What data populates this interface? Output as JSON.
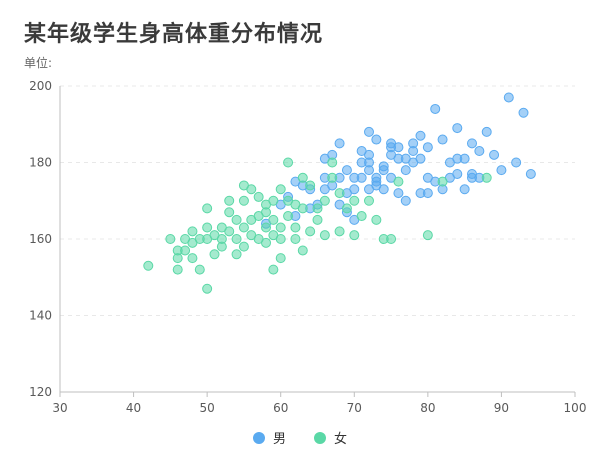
{
  "page": {
    "title": "某年级学生身高体重分布情况",
    "unit_label": "单位:"
  },
  "colors": {
    "male": "#5aaaf0",
    "female": "#5ad8a6",
    "axis": "#bfbfbf",
    "grid": "#e8e8e8",
    "tick_text": "#595959"
  },
  "legend": [
    {
      "name": "男",
      "color_key": "male"
    },
    {
      "name": "女",
      "color_key": "female"
    }
  ],
  "chart_data": {
    "type": "scatter",
    "title": "某年级学生身高体重分布情况",
    "xlabel": "",
    "ylabel": "单位:",
    "xlim": [
      30,
      100
    ],
    "ylim": [
      120,
      200
    ],
    "x_ticks": [
      30,
      40,
      50,
      60,
      70,
      80,
      90,
      100
    ],
    "y_ticks": [
      120,
      140,
      160,
      180,
      200
    ],
    "grid": "horizontal dashed",
    "legend_position": "bottom",
    "series": [
      {
        "name": "男",
        "color": "#5aaaf0",
        "points": [
          [
            58,
            164
          ],
          [
            61,
            171
          ],
          [
            62,
            175
          ],
          [
            63,
            174
          ],
          [
            64,
            173
          ],
          [
            65,
            169
          ],
          [
            66,
            181
          ],
          [
            67,
            174
          ],
          [
            68,
            176
          ],
          [
            68,
            169
          ],
          [
            69,
            167
          ],
          [
            69,
            172
          ],
          [
            70,
            173
          ],
          [
            70,
            176
          ],
          [
            71,
            176
          ],
          [
            71,
            180
          ],
          [
            72,
            182
          ],
          [
            72,
            178
          ],
          [
            72,
            188
          ],
          [
            73,
            186
          ],
          [
            73,
            176
          ],
          [
            73,
            174
          ],
          [
            74,
            173
          ],
          [
            74,
            179
          ],
          [
            75,
            182
          ],
          [
            75,
            184
          ],
          [
            75,
            176
          ],
          [
            76,
            172
          ],
          [
            76,
            181
          ],
          [
            76,
            184
          ],
          [
            77,
            178
          ],
          [
            77,
            181
          ],
          [
            78,
            180
          ],
          [
            78,
            185
          ],
          [
            79,
            181
          ],
          [
            79,
            187
          ],
          [
            80,
            184
          ],
          [
            80,
            172
          ],
          [
            81,
            194
          ],
          [
            81,
            175
          ],
          [
            82,
            186
          ],
          [
            82,
            173
          ],
          [
            83,
            180
          ],
          [
            83,
            176
          ],
          [
            84,
            189
          ],
          [
            84,
            177
          ],
          [
            85,
            181
          ],
          [
            85,
            173
          ],
          [
            86,
            176
          ],
          [
            86,
            185
          ],
          [
            87,
            183
          ],
          [
            87,
            176
          ],
          [
            88,
            188
          ],
          [
            89,
            182
          ],
          [
            90,
            178
          ],
          [
            91,
            197
          ],
          [
            92,
            180
          ],
          [
            93,
            193
          ],
          [
            94,
            177
          ],
          [
            71,
            183
          ],
          [
            67,
            182
          ],
          [
            72,
            173
          ],
          [
            70,
            165
          ],
          [
            68,
            185
          ],
          [
            66,
            173
          ],
          [
            73,
            175
          ],
          [
            74,
            178
          ],
          [
            77,
            170
          ],
          [
            79,
            172
          ],
          [
            80,
            176
          ],
          [
            84,
            181
          ],
          [
            86,
            177
          ],
          [
            72,
            180
          ],
          [
            75,
            185
          ],
          [
            78,
            183
          ],
          [
            60,
            169
          ],
          [
            62,
            166
          ],
          [
            64,
            168
          ],
          [
            66,
            176
          ],
          [
            69,
            178
          ]
        ]
      },
      {
        "name": "女",
        "color": "#5ad8a6",
        "points": [
          [
            42,
            153
          ],
          [
            45,
            160
          ],
          [
            46,
            152
          ],
          [
            46,
            155
          ],
          [
            47,
            160
          ],
          [
            47,
            157
          ],
          [
            48,
            159
          ],
          [
            48,
            162
          ],
          [
            49,
            152
          ],
          [
            49,
            160
          ],
          [
            50,
            147
          ],
          [
            50,
            160
          ],
          [
            50,
            168
          ],
          [
            51,
            156
          ],
          [
            51,
            161
          ],
          [
            52,
            160
          ],
          [
            52,
            163
          ],
          [
            53,
            162
          ],
          [
            53,
            167
          ],
          [
            53,
            170
          ],
          [
            54,
            156
          ],
          [
            54,
            160
          ],
          [
            54,
            165
          ],
          [
            55,
            163
          ],
          [
            55,
            174
          ],
          [
            55,
            170
          ],
          [
            56,
            161
          ],
          [
            56,
            165
          ],
          [
            56,
            173
          ],
          [
            57,
            166
          ],
          [
            57,
            171
          ],
          [
            57,
            160
          ],
          [
            58,
            167
          ],
          [
            58,
            169
          ],
          [
            58,
            163
          ],
          [
            59,
            152
          ],
          [
            59,
            161
          ],
          [
            59,
            165
          ],
          [
            59,
            170
          ],
          [
            60,
            155
          ],
          [
            60,
            160
          ],
          [
            60,
            163
          ],
          [
            60,
            173
          ],
          [
            61,
            166
          ],
          [
            61,
            180
          ],
          [
            61,
            170
          ],
          [
            62,
            163
          ],
          [
            62,
            169
          ],
          [
            63,
            168
          ],
          [
            63,
            157
          ],
          [
            63,
            176
          ],
          [
            64,
            162
          ],
          [
            64,
            174
          ],
          [
            65,
            165
          ],
          [
            65,
            168
          ],
          [
            66,
            170
          ],
          [
            66,
            161
          ],
          [
            67,
            176
          ],
          [
            67,
            180
          ],
          [
            68,
            162
          ],
          [
            68,
            172
          ],
          [
            69,
            168
          ],
          [
            70,
            170
          ],
          [
            70,
            161
          ],
          [
            71,
            166
          ],
          [
            72,
            170
          ],
          [
            73,
            165
          ],
          [
            74,
            160
          ],
          [
            75,
            160
          ],
          [
            76,
            175
          ],
          [
            80,
            161
          ],
          [
            82,
            175
          ],
          [
            88,
            176
          ],
          [
            46,
            157
          ],
          [
            48,
            155
          ],
          [
            52,
            158
          ],
          [
            55,
            158
          ],
          [
            58,
            159
          ],
          [
            62,
            160
          ],
          [
            50,
            163
          ]
        ]
      }
    ]
  }
}
